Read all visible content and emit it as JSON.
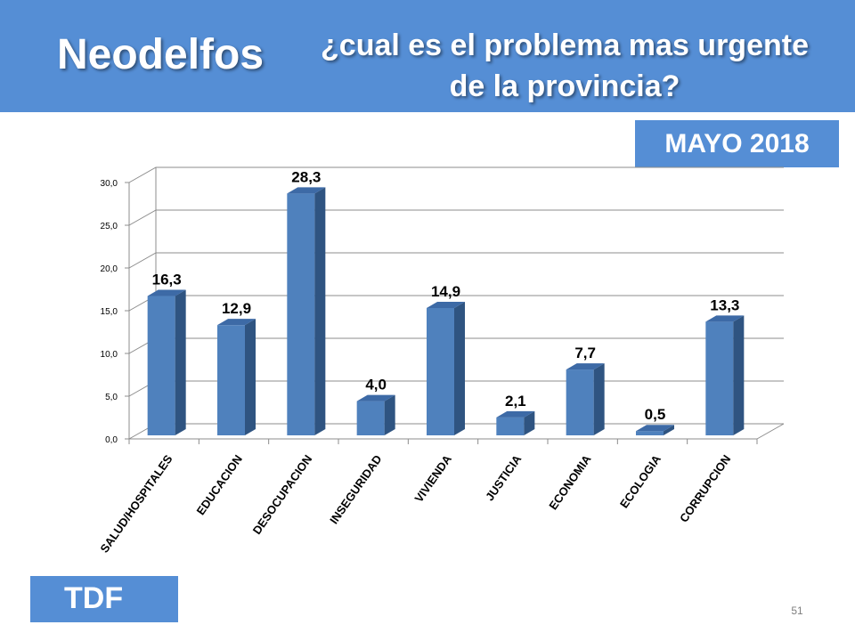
{
  "header": {
    "brand": "Neodelfos",
    "question_line1": "¿cual es el problema mas urgente",
    "question_line2": "de la provincia?"
  },
  "date_badge": "MAYO 2018",
  "region_badge": "TDF",
  "page_number": "51",
  "colors": {
    "header_bg": "#558ED5",
    "bar_front": "#4F81BD",
    "bar_side": "#2F5481",
    "bar_top": "#3D6AA6"
  },
  "chart_data": {
    "type": "bar",
    "categories": [
      "SALUD/HOSPITALES",
      "EDUCACION",
      "DESOCUPACION",
      "INSEGURIDAD",
      "VIVIENDA",
      "JUSTICIA",
      "ECONOMIA",
      "ECOLOGIA",
      "CORRUPCION"
    ],
    "values": [
      16.3,
      12.9,
      28.3,
      4.0,
      14.9,
      2.1,
      7.7,
      0.5,
      13.3
    ],
    "data_labels": [
      "16,3",
      "12,9",
      "28,3",
      "4,0",
      "14,9",
      "2,1",
      "7,7",
      "0,5",
      "13,3"
    ],
    "y_ticks": [
      "0,0",
      "5,0",
      "10,0",
      "15,0",
      "20,0",
      "25,0",
      "30,0"
    ],
    "ylim": [
      0,
      30
    ],
    "grid": true,
    "legend": false,
    "style": "3d"
  }
}
